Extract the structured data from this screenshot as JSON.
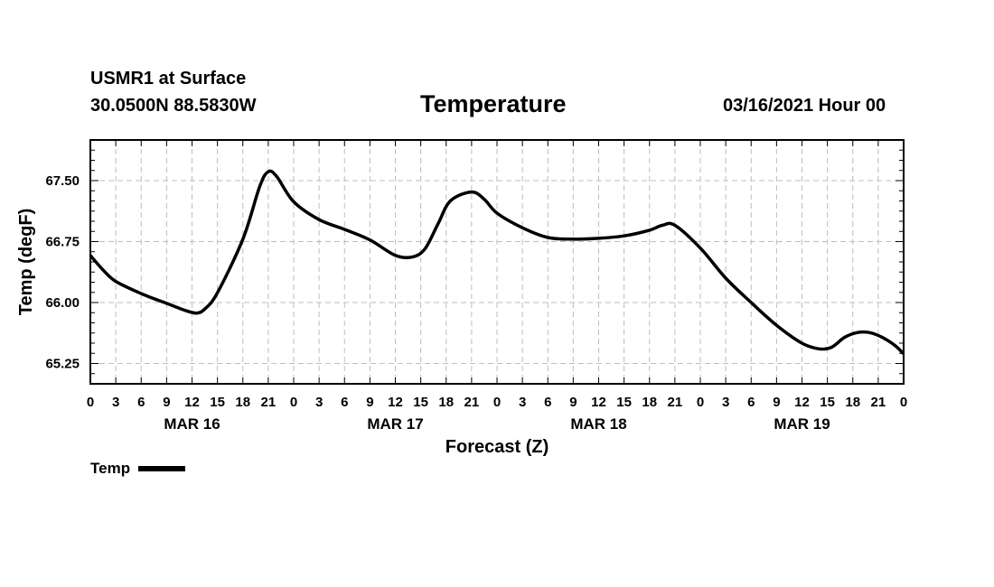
{
  "header": {
    "station": "USMR1 at Surface",
    "coords": "30.0500N 88.5830W",
    "title": "Temperature",
    "valid": "03/16/2021 Hour 00"
  },
  "chart_data": {
    "type": "line",
    "title": "Temperature",
    "xlabel": "Forecast (Z)",
    "ylabel": "Temp (degF)",
    "ylim": [
      65.0,
      68.0
    ],
    "yticks": [
      65.25,
      66.0,
      66.75,
      67.5
    ],
    "ytick_labels": [
      "65.25",
      "66.00",
      "66.75",
      "67.50"
    ],
    "xlim": [
      0,
      96
    ],
    "x_unit": "forecast hour",
    "xticks": [
      0,
      3,
      6,
      9,
      12,
      15,
      18,
      21,
      24,
      27,
      30,
      33,
      36,
      39,
      42,
      45,
      48,
      51,
      54,
      57,
      60,
      63,
      66,
      69,
      72,
      75,
      78,
      81,
      84,
      87,
      90,
      93,
      96
    ],
    "xtick_labels": [
      "0",
      "3",
      "6",
      "9",
      "12",
      "15",
      "18",
      "21",
      "0",
      "3",
      "6",
      "9",
      "12",
      "15",
      "18",
      "21",
      "0",
      "3",
      "6",
      "9",
      "12",
      "15",
      "18",
      "21",
      "0",
      "3",
      "6",
      "9",
      "12",
      "15",
      "18",
      "21",
      "0"
    ],
    "day_labels": [
      {
        "label": "MAR 16",
        "hour": 12
      },
      {
        "label": "MAR 17",
        "hour": 36
      },
      {
        "label": "MAR 18",
        "hour": 60
      },
      {
        "label": "MAR 19",
        "hour": 84
      }
    ],
    "grid": true,
    "legend_position": "bottom-left",
    "series": [
      {
        "name": "Temp",
        "color": "#000000",
        "x": [
          0,
          1.5,
          3,
          6,
          9,
          11,
          12.5,
          13.5,
          15,
          18,
          20,
          21,
          22,
          24,
          27,
          30,
          33,
          36,
          38,
          39.5,
          41,
          42.5,
          45,
          46.5,
          48,
          51,
          54,
          57,
          60,
          63,
          66,
          67.5,
          69,
          72,
          75,
          78,
          81,
          84,
          86,
          87.5,
          89,
          90.5,
          92,
          93.5,
          95,
          96
        ],
        "values": [
          66.58,
          66.4,
          66.26,
          66.11,
          65.99,
          65.91,
          65.87,
          65.92,
          66.12,
          66.78,
          67.43,
          67.61,
          67.55,
          67.24,
          67.02,
          66.9,
          66.77,
          66.58,
          66.56,
          66.66,
          66.96,
          67.25,
          67.36,
          67.27,
          67.1,
          66.92,
          66.8,
          66.78,
          66.79,
          66.82,
          66.89,
          66.95,
          66.95,
          66.67,
          66.3,
          66.0,
          65.72,
          65.5,
          65.43,
          65.45,
          65.57,
          65.63,
          65.63,
          65.57,
          65.47,
          65.37
        ]
      }
    ]
  }
}
